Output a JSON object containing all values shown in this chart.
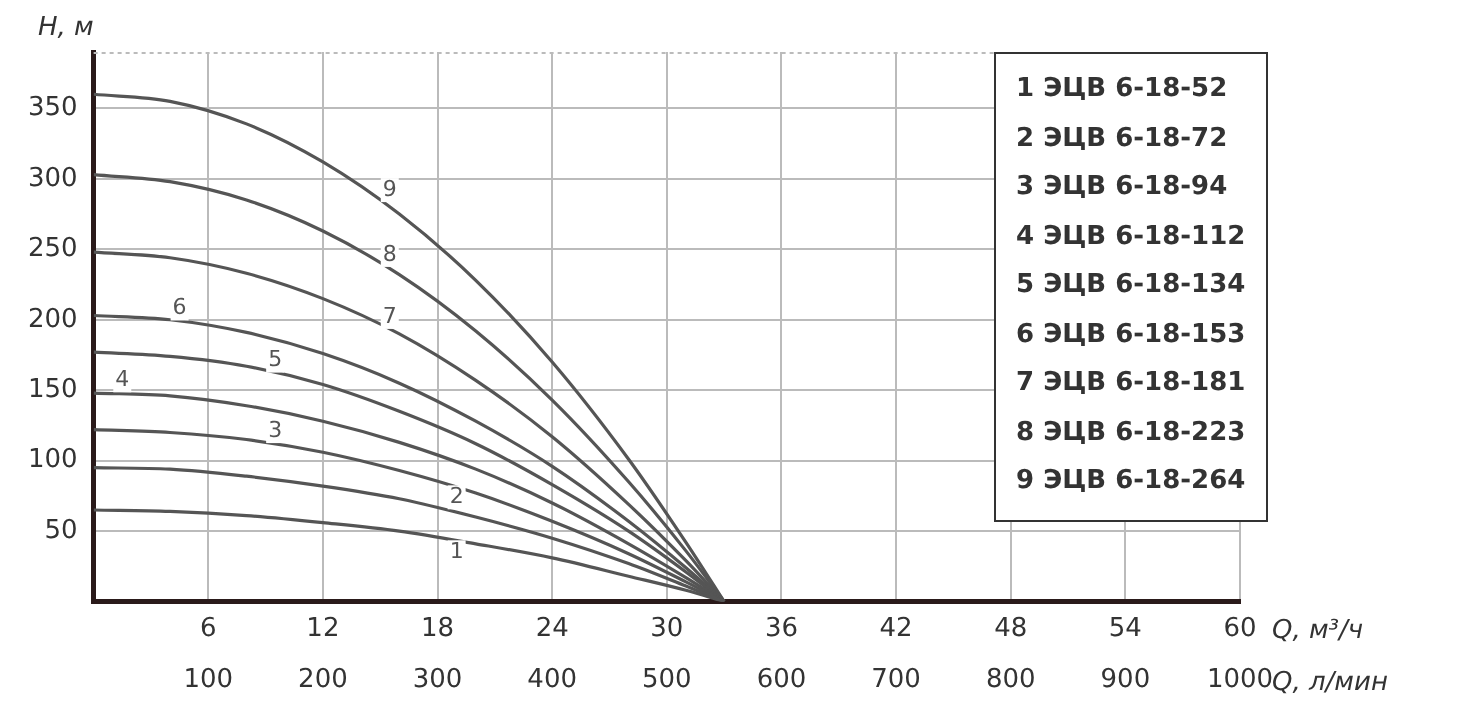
{
  "chart_data": {
    "type": "line",
    "xlabel": "Q, м³/ч",
    "x2label": "Q, л/мин",
    "ylabel": "H, м",
    "x": [
      0,
      4,
      8,
      12,
      16,
      20,
      24,
      28,
      31,
      33
    ],
    "xlim": [
      0,
      60
    ],
    "xticks": [
      6,
      12,
      18,
      24,
      30,
      36,
      42,
      48,
      54,
      60
    ],
    "x2lim": [
      0,
      1000
    ],
    "x2ticks": [
      100,
      200,
      300,
      400,
      500,
      600,
      700,
      800,
      900,
      1000
    ],
    "ylim": [
      0,
      390
    ],
    "yticks": [
      50,
      100,
      150,
      200,
      250,
      300,
      350
    ],
    "grid": true,
    "legend": "top right",
    "marker": "none",
    "line_style": "solid",
    "series": [
      {
        "name": "1 ЭЦВ 6-18-52",
        "color": "#555555",
        "values": [
          65,
          64,
          61,
          56,
          50,
          41,
          31,
          18,
          8,
          0
        ]
      },
      {
        "name": "2 ЭЦВ 6-18-72",
        "color": "#555555",
        "values": [
          95,
          94,
          89,
          82,
          73,
          60,
          45,
          27,
          11,
          0
        ]
      },
      {
        "name": "3 ЭЦВ 6-18-94",
        "color": "#555555",
        "values": [
          122,
          120,
          115,
          106,
          93,
          77,
          57,
          34,
          14,
          0
        ]
      },
      {
        "name": "4 ЭЦВ 6-18-112",
        "color": "#555555",
        "values": [
          148,
          146,
          139,
          128,
          113,
          94,
          70,
          41,
          17,
          0
        ]
      },
      {
        "name": "5 ЭЦВ 6-18-134",
        "color": "#555555",
        "values": [
          177,
          174,
          167,
          154,
          135,
          112,
          83,
          50,
          21,
          0
        ]
      },
      {
        "name": "6 ЭЦВ 6-18-153",
        "color": "#555555",
        "values": [
          203,
          200,
          191,
          176,
          155,
          128,
          96,
          57,
          24,
          0
        ]
      },
      {
        "name": "7 ЭЦВ 6-18-181",
        "color": "#555555",
        "values": [
          248,
          244,
          233,
          215,
          190,
          157,
          117,
          69,
          29,
          0
        ]
      },
      {
        "name": "8 ЭЦВ 6-18-223",
        "color": "#555555",
        "values": [
          303,
          298,
          285,
          263,
          232,
          192,
          143,
          85,
          36,
          0
        ]
      },
      {
        "name": "9 ЭЦВ 6-18-264",
        "color": "#555555",
        "values": [
          360,
          355,
          339,
          312,
          275,
          228,
          170,
          101,
          42,
          0
        ]
      }
    ],
    "annotations": [
      {
        "text": "1",
        "x": 19,
        "y": 35
      },
      {
        "text": "2",
        "x": 19,
        "y": 74
      },
      {
        "text": "3",
        "x": 9.5,
        "y": 121
      },
      {
        "text": "4",
        "x": 1.5,
        "y": 157
      },
      {
        "text": "5",
        "x": 9.5,
        "y": 171
      },
      {
        "text": "6",
        "x": 4.5,
        "y": 208
      },
      {
        "text": "7",
        "x": 15.5,
        "y": 202
      },
      {
        "text": "8",
        "x": 15.5,
        "y": 246
      },
      {
        "text": "9",
        "x": 15.5,
        "y": 292
      }
    ]
  }
}
